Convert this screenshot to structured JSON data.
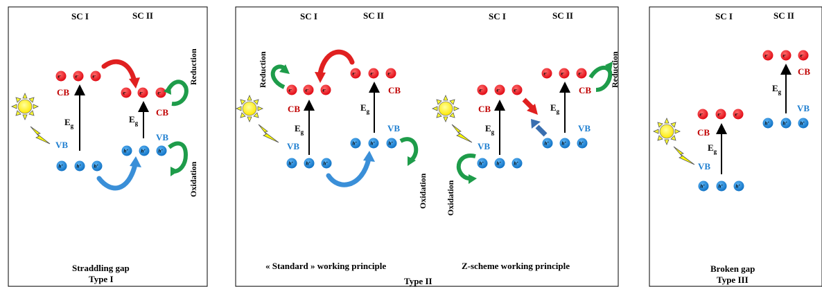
{
  "panels": {
    "p1": {
      "sc1": "SC I",
      "sc2": "SC II",
      "caption1": "Straddling gap",
      "caption2": "Type I"
    },
    "p2": {
      "sc1a": "SC I",
      "sc2a": "SC II",
      "sc1b": "SC I",
      "sc2b": "SC II",
      "caption_std": "« Standard » working principle",
      "caption_z": "Z-scheme working principle",
      "caption_type": "Type II"
    },
    "p3": {
      "sc1": "SC I",
      "sc2": "SC II",
      "caption1": "Broken gap",
      "caption2": "Type III"
    }
  },
  "labels": {
    "cb": "CB",
    "vb": "VB",
    "eg": "E",
    "eg_sub": "g",
    "reduction": "Reduction",
    "oxidation": "Oxidation",
    "electron": "e⁻",
    "hole": "h⁺"
  },
  "colors": {
    "electron": "#e8141c",
    "hole": "#1a86d8",
    "cb_text": "#c00000",
    "vb_text": "#1f7fd0",
    "arrow_red": "#e02020",
    "arrow_blue": "#3a8fd8",
    "arrow_green": "#1e9c4a",
    "sun": "#ffff00",
    "bolt": "#ffff00"
  },
  "icons": [
    "sun-icon",
    "lightning-bolt-icon",
    "electron-icon",
    "hole-icon",
    "curved-arrow-icon"
  ]
}
